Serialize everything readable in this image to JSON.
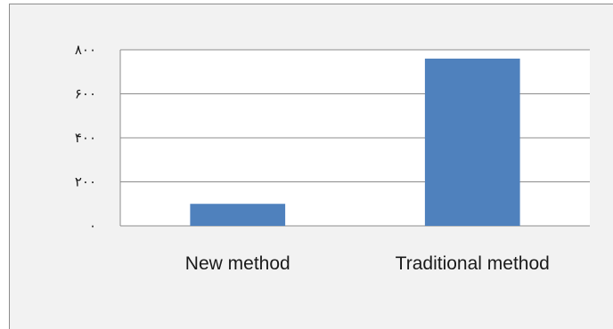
{
  "chart_data": {
    "type": "bar",
    "categories": [
      "New method",
      "Traditional method"
    ],
    "values": [
      100,
      760
    ],
    "ylim": [
      0,
      800
    ],
    "yticks": [
      0,
      200,
      400,
      600,
      800
    ],
    "ytick_labels": [
      "٠",
      "٢٠٠",
      "۴٠٠",
      "۶٠٠",
      "٨٠٠"
    ],
    "grid": true,
    "legend": "none",
    "bar_color": "#4f81bd",
    "grid_color": "#8c8c8c",
    "plot_background": "#ffffff",
    "chart_background": "#f2f2f2"
  }
}
